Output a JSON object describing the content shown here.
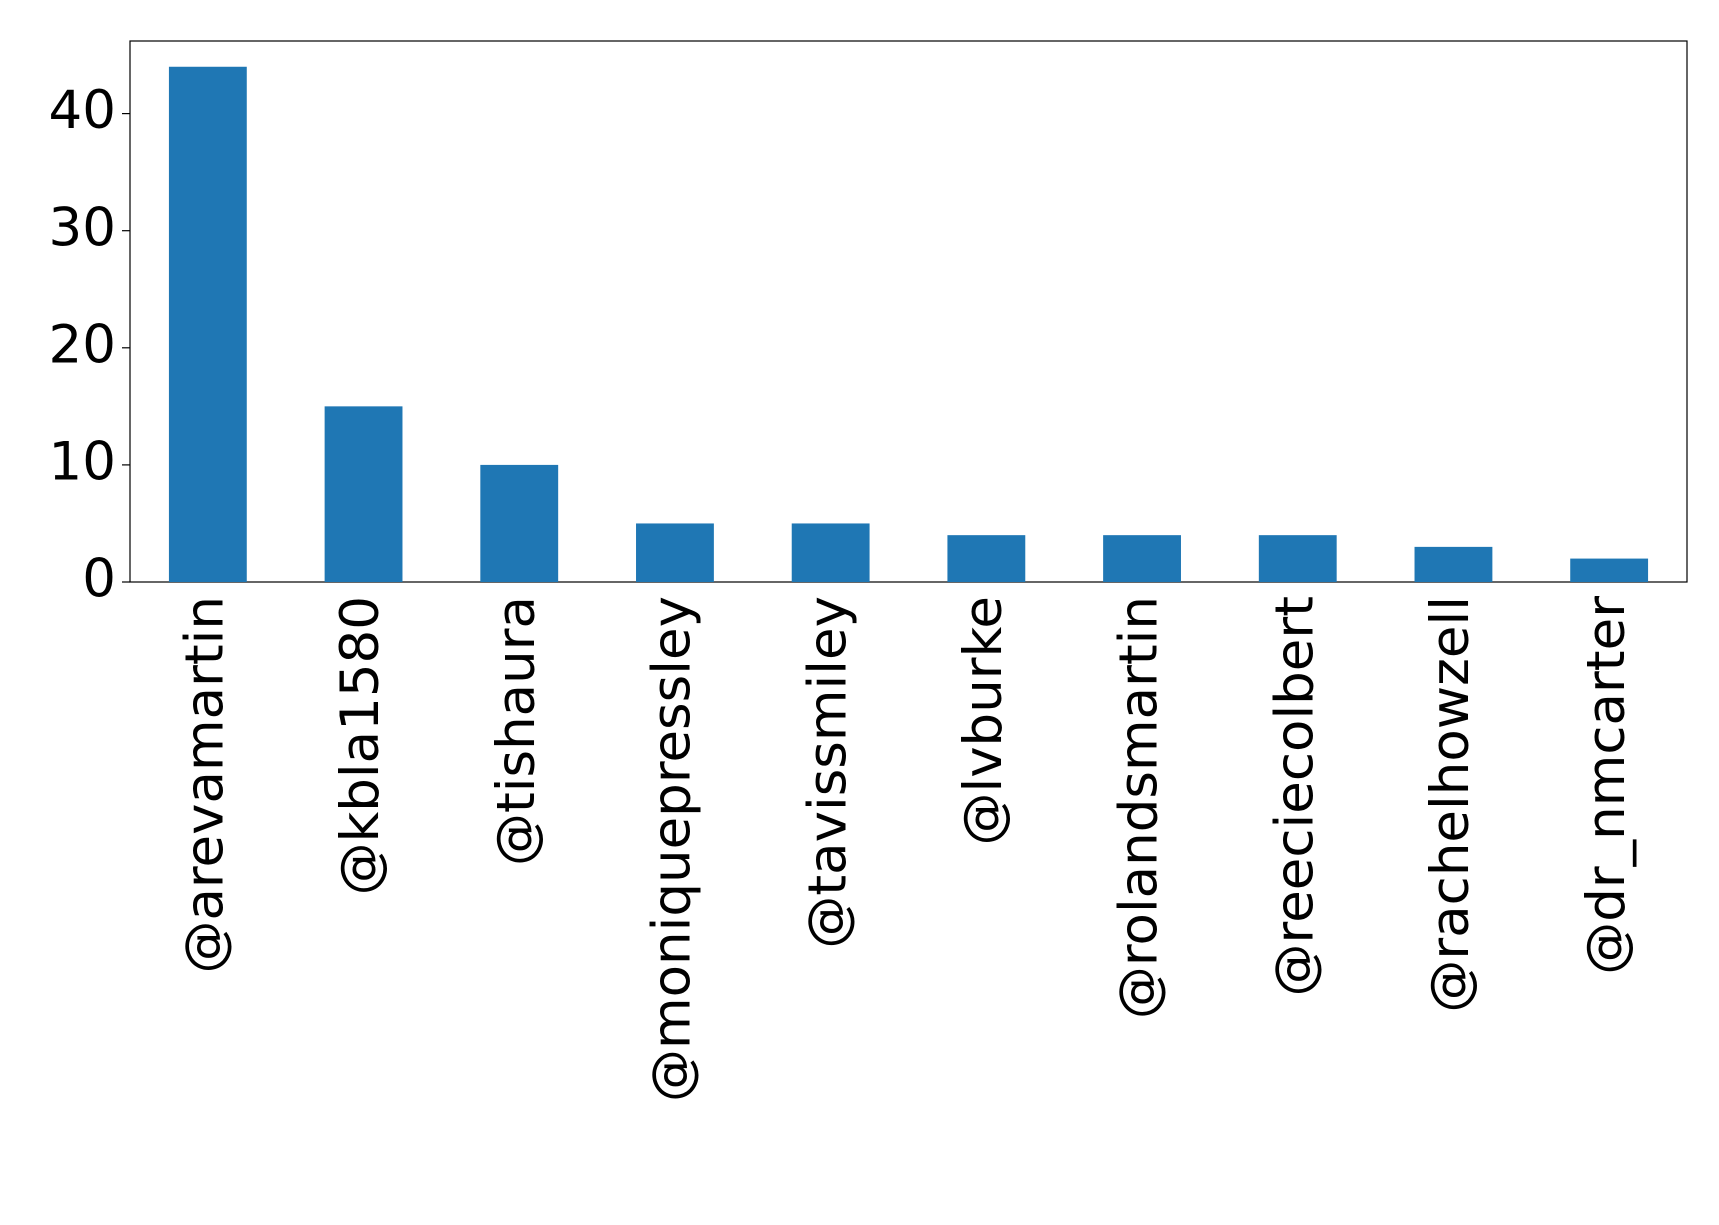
{
  "chart_data": {
    "type": "bar",
    "categories": [
      "@arevamartin",
      "@kbla1580",
      "@tishaura",
      "@moniquepressley",
      "@tavissmiley",
      "@lvburke",
      "@rolandsmartin",
      "@reeciecolbert",
      "@rachelhowzell",
      "@dr_nmcarter"
    ],
    "values": [
      44,
      15,
      10,
      5,
      5,
      4,
      4,
      4,
      3,
      2
    ],
    "color": "#1f77b4",
    "ylim": [
      0,
      46.2
    ],
    "yticks": [
      0,
      10,
      20,
      30,
      40
    ],
    "grid": false
  }
}
